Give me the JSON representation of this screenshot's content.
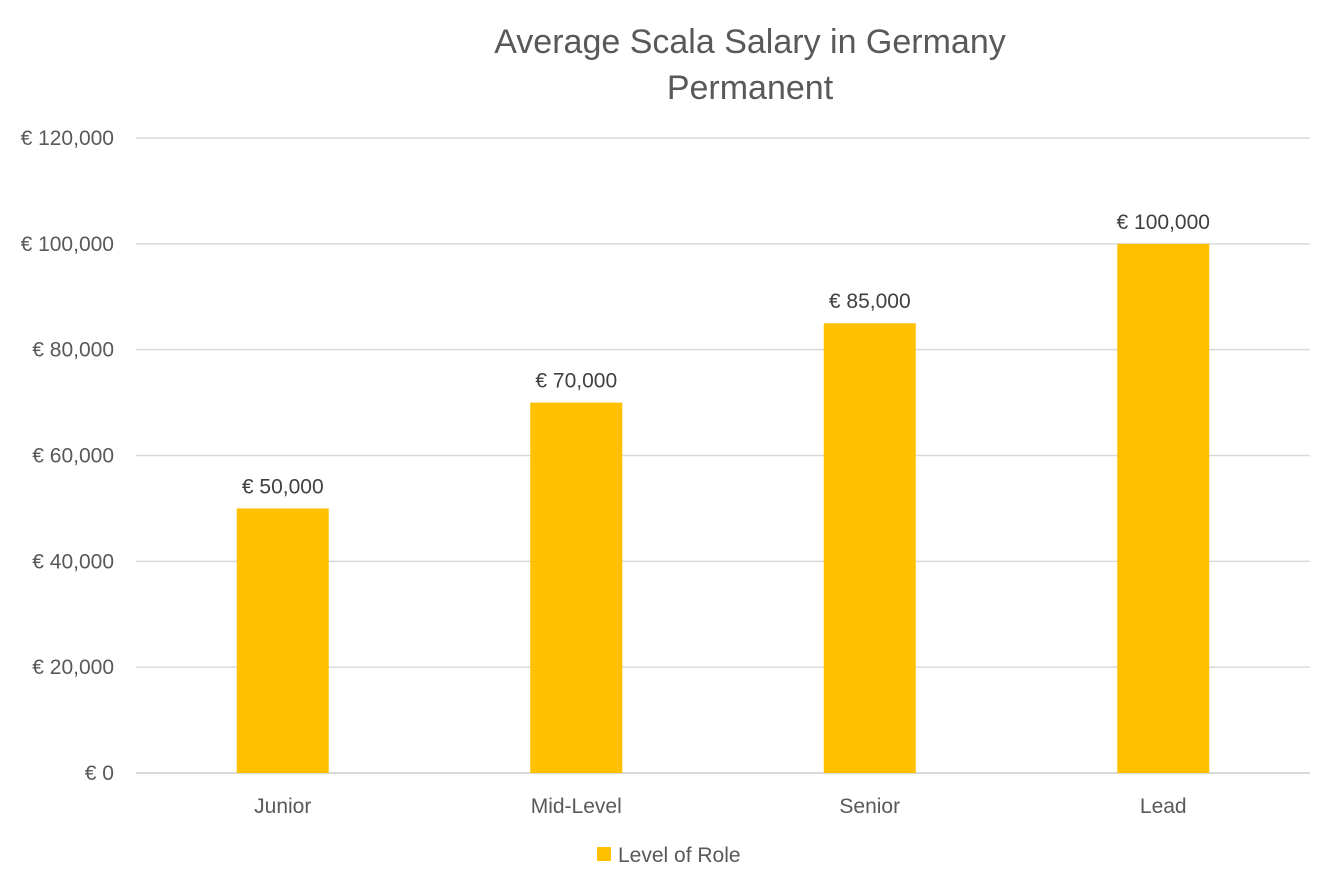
{
  "chart_data": {
    "type": "bar",
    "title": "Average Scala Salary in Germany",
    "subtitle": "Permanent",
    "categories": [
      "Junior",
      "Mid-Level",
      "Senior",
      "Lead"
    ],
    "series": [
      {
        "name": "Level of Role",
        "values": [
          50000,
          70000,
          85000,
          100000
        ],
        "color": "#FFC000"
      }
    ],
    "data_labels": [
      "€ 50,000",
      "€ 70,000",
      "€ 85,000",
      "€ 100,000"
    ],
    "y_ticks": [
      0,
      20000,
      40000,
      60000,
      80000,
      100000,
      120000
    ],
    "y_tick_labels": [
      "€ 0",
      "€ 20,000",
      "€ 40,000",
      "€ 60,000",
      "€ 80,000",
      "€ 100,000",
      "€ 120,000"
    ],
    "ylim": [
      0,
      120000
    ],
    "xlabel": "",
    "ylabel": "",
    "grid": true,
    "legend_position": "bottom"
  }
}
